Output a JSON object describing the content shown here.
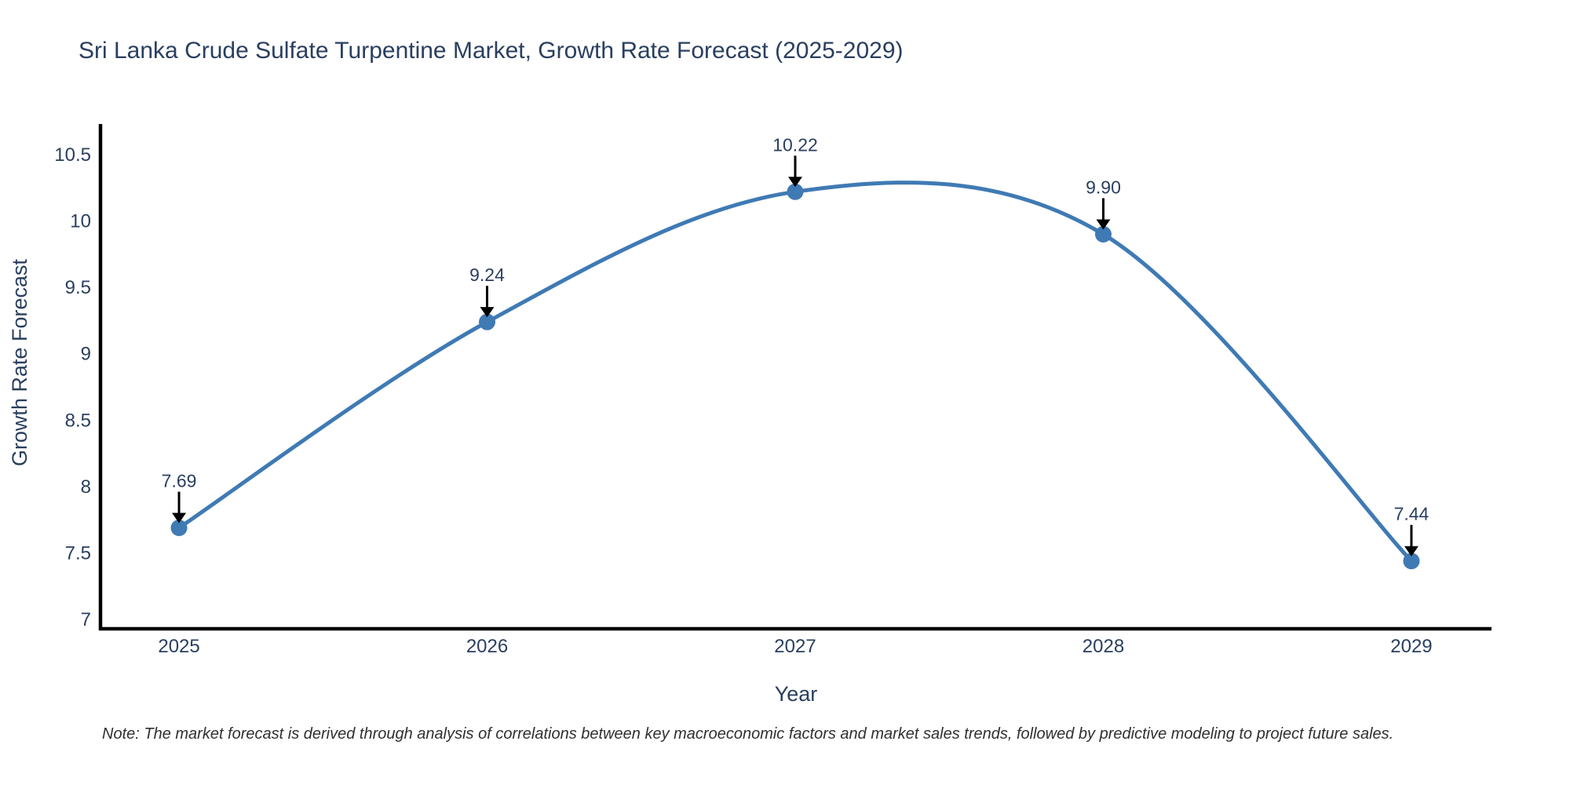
{
  "chart_data": {
    "type": "line",
    "title": "Sri Lanka Crude Sulfate Turpentine Market, Growth Rate Forecast (2025-2029)",
    "xlabel": "Year",
    "ylabel": "Growth Rate Forecast",
    "x": [
      2025,
      2026,
      2027,
      2028,
      2029
    ],
    "series": [
      {
        "name": "Growth Rate Forecast",
        "values": [
          7.69,
          9.24,
          10.22,
          9.9,
          7.44
        ]
      }
    ],
    "point_labels": [
      "7.69",
      "9.24",
      "10.22",
      "9.90",
      "7.44"
    ],
    "x_tick_labels": [
      "2025",
      "2026",
      "2027",
      "2028",
      "2029"
    ],
    "y_ticks": [
      7,
      7.5,
      8,
      8.5,
      9,
      9.5,
      10,
      10.5
    ],
    "y_tick_labels": [
      "7",
      "7.5",
      "8",
      "8.5",
      "9",
      "9.5",
      "10",
      "10.5"
    ],
    "ylim": [
      6.93,
      10.73
    ],
    "xlim": [
      2024.74,
      2029.26
    ],
    "line_shape": "spline",
    "grid": false,
    "legend_position": "none",
    "annotations_style": "value above point with downward black arrow",
    "note": "Note: The market forecast is derived through analysis of correlations between key macroeconomic factors and market sales trends, followed by predictive modeling to project future sales.",
    "colors": {
      "line": "#3f7ab4",
      "marker": "#3f7ab4",
      "text": "#2a3f5f",
      "axis": "#000000",
      "annotation_arrow": "#000000",
      "note_text": "#303030",
      "background": "#ffffff"
    }
  }
}
